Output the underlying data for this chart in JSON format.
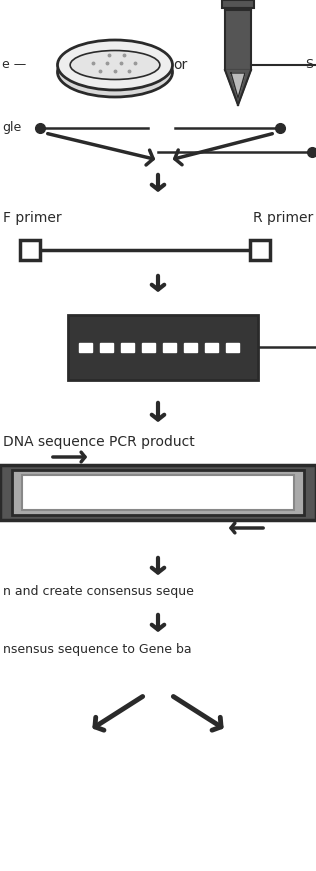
{
  "bg_color": "#ffffff",
  "dark": "#2a2a2a",
  "mid_gray": "#888888",
  "light_gray": "#cccccc",
  "text_color": "#000000",
  "fig_width": 3.16,
  "fig_height": 8.71,
  "dpi": 100,
  "label_f_primer": "F primer",
  "label_r_primer": "R primer",
  "label_or": "or",
  "label_dna_seq": "DNA sequence PCR product",
  "label_consensus1": "n and create consensus seque",
  "label_consensus2": "nsensus sequence to Gene ba"
}
